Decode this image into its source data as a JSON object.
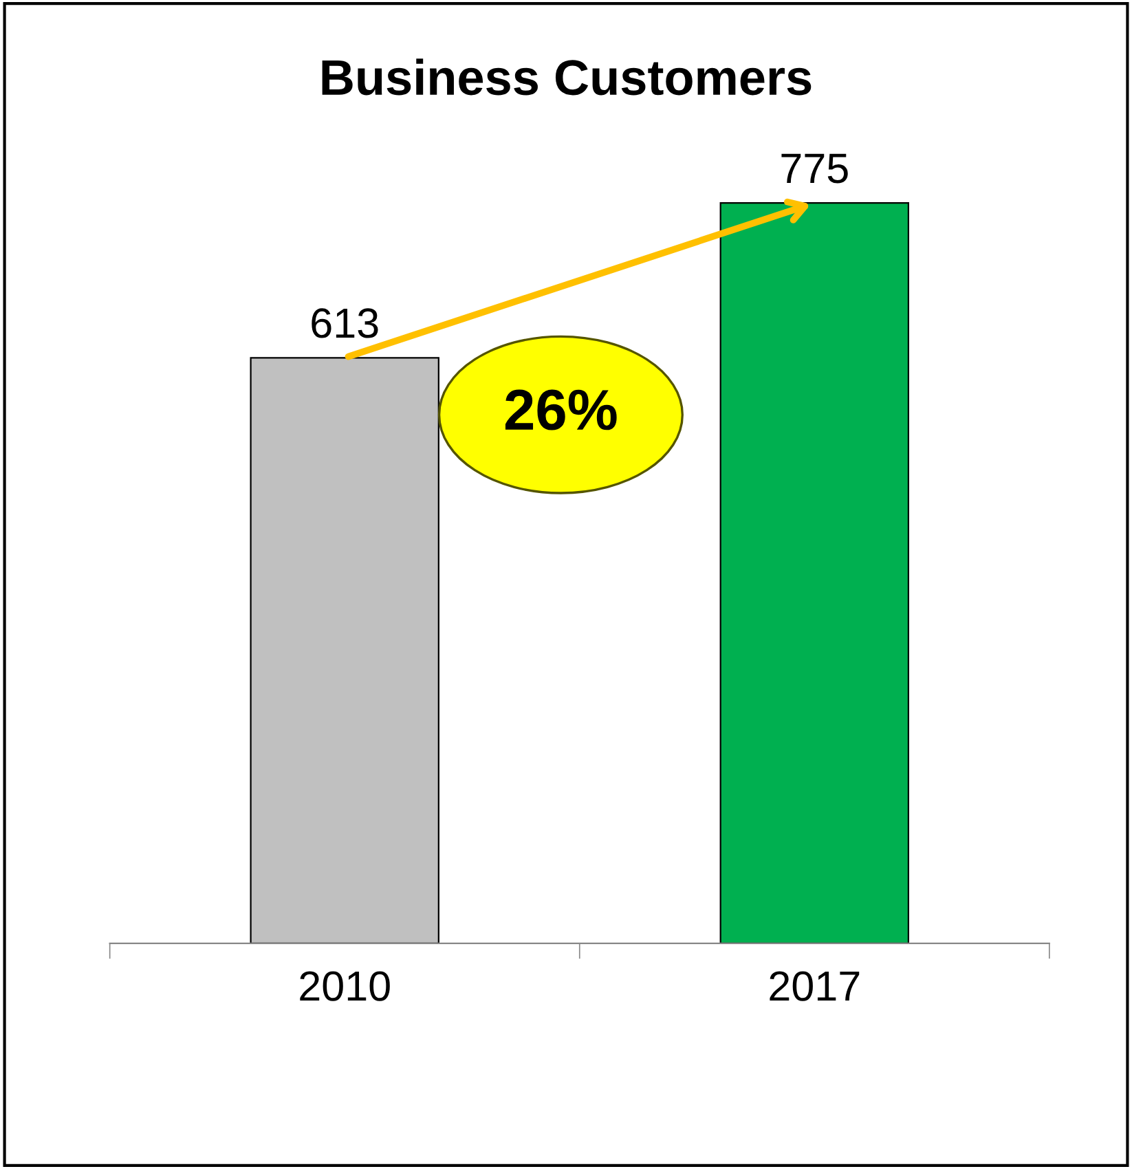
{
  "chart_data": {
    "type": "bar",
    "title": "Business Customers",
    "categories": [
      "2010",
      "2017"
    ],
    "values": [
      613,
      775
    ],
    "colors": [
      "#c0c0c0",
      "#00b050"
    ],
    "data_labels": true,
    "grid": false,
    "legend": false,
    "annotations": [
      "26%"
    ]
  }
}
